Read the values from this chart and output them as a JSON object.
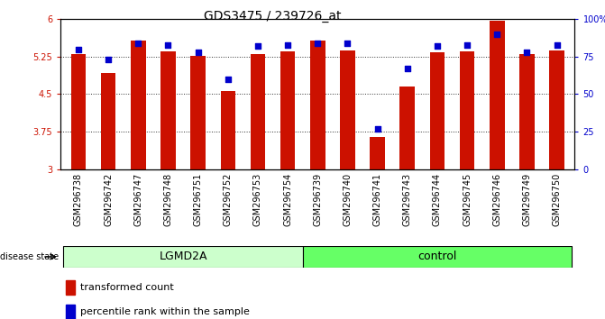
{
  "title": "GDS3475 / 239726_at",
  "samples": [
    "GSM296738",
    "GSM296742",
    "GSM296747",
    "GSM296748",
    "GSM296751",
    "GSM296752",
    "GSM296753",
    "GSM296754",
    "GSM296739",
    "GSM296740",
    "GSM296741",
    "GSM296743",
    "GSM296744",
    "GSM296745",
    "GSM296746",
    "GSM296749",
    "GSM296750"
  ],
  "bar_values": [
    5.3,
    4.92,
    5.58,
    5.35,
    5.27,
    4.57,
    5.31,
    5.35,
    5.57,
    5.37,
    3.65,
    4.65,
    5.33,
    5.35,
    5.97,
    5.3,
    5.38
  ],
  "dot_values": [
    80,
    73,
    84,
    83,
    78,
    60,
    82,
    83,
    84,
    84,
    27,
    67,
    82,
    83,
    90,
    78,
    83
  ],
  "bar_color": "#cc1100",
  "dot_color": "#0000cc",
  "ylim_left": [
    3,
    6
  ],
  "ylim_right": [
    0,
    100
  ],
  "yticks_left": [
    3,
    3.75,
    4.5,
    5.25,
    6
  ],
  "yticks_right": [
    0,
    25,
    50,
    75,
    100
  ],
  "ytick_labels_right": [
    "0",
    "25",
    "50",
    "75",
    "100%"
  ],
  "baseline": 3,
  "group1_label": "LGMD2A",
  "group2_label": "control",
  "group1_count": 8,
  "group2_count": 9,
  "disease_state_label": "disease state",
  "legend_bar_label": "transformed count",
  "legend_dot_label": "percentile rank within the sample",
  "group1_color": "#ccffcc",
  "group2_color": "#66ff66",
  "bar_width": 0.5,
  "gridline_color": "#333333",
  "bg_color": "#ffffff",
  "title_fontsize": 10,
  "tick_fontsize": 7,
  "label_fontsize": 9
}
